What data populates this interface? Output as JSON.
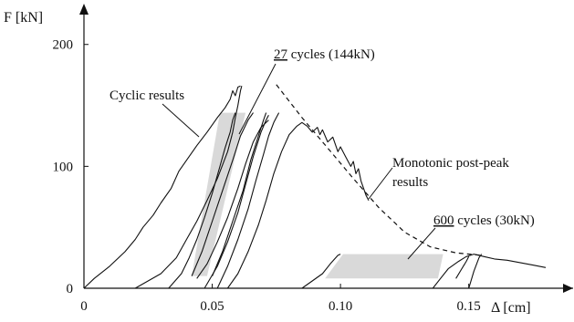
{
  "chart_data": {
    "type": "line",
    "title": "",
    "xlabel": "Δ [cm]",
    "ylabel": "F [kN]",
    "xlim": [
      0,
      0.18
    ],
    "ylim": [
      0,
      220
    ],
    "x_ticks": [
      {
        "value": 0,
        "label": "0"
      },
      {
        "value": 0.05,
        "label": "0.05"
      },
      {
        "value": 0.1,
        "label": "0.10"
      },
      {
        "value": 0.15,
        "label": "0.15"
      }
    ],
    "y_ticks": [
      {
        "value": 0,
        "label": "0"
      },
      {
        "value": 100,
        "label": "100"
      },
      {
        "value": 200,
        "label": "200"
      }
    ],
    "grid": false,
    "legend": "none",
    "annotations": {
      "cyclic": "Cyclic results",
      "cycles27_count": "27",
      "cycles27_rest": " cycles (144kN)",
      "monotonic_line1": "Monotonic post-peak",
      "monotonic_line2": "results",
      "cycles600_count": "600",
      "cycles600_rest": " cycles (30kN)"
    },
    "series": [
      {
        "style": "solid",
        "points": [
          [
            0.0,
            0
          ],
          [
            0.004,
            8
          ],
          [
            0.01,
            18
          ],
          [
            0.016,
            30
          ],
          [
            0.02,
            40
          ],
          [
            0.023,
            50
          ],
          [
            0.027,
            60
          ],
          [
            0.03,
            70
          ],
          [
            0.034,
            82
          ],
          [
            0.037,
            96
          ],
          [
            0.04,
            105
          ],
          [
            0.044,
            117
          ],
          [
            0.048,
            128
          ],
          [
            0.052,
            140
          ],
          [
            0.055,
            148
          ],
          [
            0.057,
            155
          ],
          [
            0.058,
            162
          ],
          [
            0.059,
            158
          ],
          [
            0.06,
            165
          ],
          [
            0.061,
            166
          ]
        ]
      },
      {
        "style": "solid",
        "points": [
          [
            0.02,
            0
          ],
          [
            0.03,
            12
          ],
          [
            0.036,
            25
          ],
          [
            0.04,
            40
          ],
          [
            0.044,
            55
          ],
          [
            0.048,
            72
          ],
          [
            0.052,
            90
          ],
          [
            0.056,
            112
          ],
          [
            0.058,
            128
          ],
          [
            0.059,
            140
          ],
          [
            0.06,
            150
          ],
          [
            0.061,
            162
          ],
          [
            0.0615,
            166
          ]
        ]
      },
      {
        "style": "solid",
        "points": [
          [
            0.033,
            0
          ],
          [
            0.038,
            12
          ],
          [
            0.041,
            25
          ],
          [
            0.044,
            40
          ],
          [
            0.047,
            58
          ],
          [
            0.05,
            78
          ],
          [
            0.053,
            100
          ],
          [
            0.055,
            115
          ],
          [
            0.057,
            128
          ],
          [
            0.058,
            138
          ],
          [
            0.059,
            144
          ]
        ]
      },
      {
        "style": "solid",
        "points": [
          [
            0.042,
            10
          ],
          [
            0.046,
            30
          ],
          [
            0.05,
            55
          ],
          [
            0.054,
            80
          ],
          [
            0.058,
            105
          ],
          [
            0.061,
            125
          ],
          [
            0.064,
            138
          ],
          [
            0.066,
            144
          ]
        ]
      },
      {
        "style": "solid",
        "points": [
          [
            0.05,
            10
          ],
          [
            0.054,
            30
          ],
          [
            0.058,
            55
          ],
          [
            0.062,
            80
          ],
          [
            0.065,
            105
          ],
          [
            0.068,
            125
          ],
          [
            0.07,
            138
          ],
          [
            0.071,
            144
          ]
        ]
      },
      {
        "style": "solid",
        "points": [
          [
            0.047,
            0
          ],
          [
            0.052,
            18
          ],
          [
            0.056,
            38
          ],
          [
            0.06,
            62
          ],
          [
            0.063,
            85
          ],
          [
            0.066,
            108
          ],
          [
            0.069,
            128
          ],
          [
            0.071,
            138
          ],
          [
            0.072,
            142
          ]
        ]
      },
      {
        "style": "solid",
        "points": [
          [
            0.052,
            0
          ],
          [
            0.056,
            18
          ],
          [
            0.06,
            40
          ],
          [
            0.064,
            65
          ],
          [
            0.067,
            88
          ],
          [
            0.07,
            110
          ],
          [
            0.072,
            125
          ],
          [
            0.074,
            136
          ],
          [
            0.075,
            140
          ],
          [
            0.076,
            144
          ]
        ]
      },
      {
        "style": "solid",
        "points": [
          [
            0.044,
            8
          ],
          [
            0.048,
            20
          ],
          [
            0.052,
            38
          ],
          [
            0.056,
            58
          ],
          [
            0.06,
            82
          ],
          [
            0.063,
            102
          ],
          [
            0.066,
            120
          ],
          [
            0.069,
            132
          ],
          [
            0.072,
            138
          ]
        ]
      },
      {
        "style": "solid",
        "points": [
          [
            0.056,
            0
          ],
          [
            0.06,
            12
          ],
          [
            0.064,
            30
          ],
          [
            0.068,
            52
          ],
          [
            0.071,
            72
          ],
          [
            0.074,
            94
          ],
          [
            0.077,
            112
          ],
          [
            0.08,
            126
          ],
          [
            0.083,
            133
          ],
          [
            0.085,
            136
          ],
          [
            0.087,
            133
          ],
          [
            0.089,
            128
          ],
          [
            0.091,
            132
          ],
          [
            0.092,
            126
          ],
          [
            0.093,
            130
          ],
          [
            0.095,
            120
          ],
          [
            0.097,
            124
          ],
          [
            0.099,
            112
          ],
          [
            0.1,
            116
          ],
          [
            0.102,
            108
          ],
          [
            0.104,
            100
          ],
          [
            0.105,
            104
          ],
          [
            0.106,
            94
          ],
          [
            0.107,
            98
          ],
          [
            0.108,
            88
          ],
          [
            0.109,
            82
          ],
          [
            0.11,
            76
          ],
          [
            0.111,
            72
          ]
        ]
      },
      {
        "style": "solid",
        "points": [
          [
            0.085,
            0
          ],
          [
            0.089,
            6
          ],
          [
            0.093,
            12
          ],
          [
            0.096,
            20
          ],
          [
            0.099,
            27
          ],
          [
            0.1,
            28
          ]
        ]
      },
      {
        "style": "solid",
        "points": [
          [
            0.136,
            0
          ],
          [
            0.139,
            8
          ],
          [
            0.142,
            16
          ],
          [
            0.146,
            22
          ],
          [
            0.149,
            26
          ],
          [
            0.152,
            28
          ],
          [
            0.156,
            26
          ],
          [
            0.16,
            24
          ],
          [
            0.165,
            23
          ],
          [
            0.17,
            21
          ],
          [
            0.175,
            19
          ],
          [
            0.18,
            17
          ]
        ]
      },
      {
        "style": "solid",
        "points": [
          [
            0.145,
            8
          ],
          [
            0.147,
            15
          ],
          [
            0.149,
            22
          ],
          [
            0.15,
            26
          ]
        ]
      },
      {
        "style": "solid",
        "points": [
          [
            0.15,
            0
          ],
          [
            0.152,
            14
          ],
          [
            0.154,
            25
          ],
          [
            0.155,
            28
          ]
        ]
      },
      {
        "style": "dashed",
        "points": [
          [
            0.075,
            167
          ],
          [
            0.085,
            140
          ],
          [
            0.095,
            115
          ],
          [
            0.105,
            90
          ],
          [
            0.115,
            66
          ],
          [
            0.125,
            46
          ],
          [
            0.135,
            34
          ],
          [
            0.145,
            29
          ],
          [
            0.155,
            27
          ]
        ]
      }
    ],
    "shaded_regions": [
      {
        "points": [
          [
            0.053,
            144
          ],
          [
            0.063,
            144
          ],
          [
            0.048,
            10
          ],
          [
            0.042,
            10
          ]
        ]
      },
      {
        "points": [
          [
            0.101,
            28
          ],
          [
            0.14,
            28
          ],
          [
            0.138,
            8
          ],
          [
            0.094,
            8
          ]
        ]
      }
    ]
  }
}
